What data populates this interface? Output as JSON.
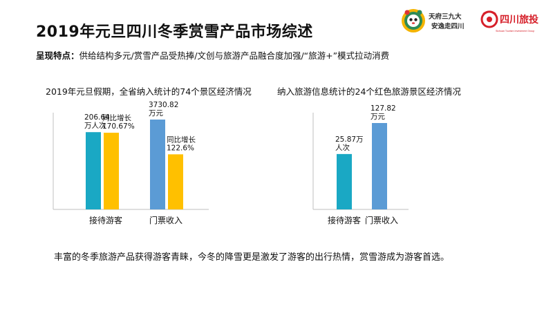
{
  "page": {
    "title": "2019年元旦四川冬季赏雪产品市场综述",
    "subtitle_label": "呈现特点：",
    "subtitle_text": "供给结构多元/赏雪产品受热捧/文创与旅游产品融合度加强/“旅游+”模式拉动消费",
    "footer": "丰富的冬季旅游产品获得游客青睐，今冬的降雪更是激发了游客的出行热情，赏雪游成为游客首选。",
    "logos": {
      "left_text_line1": "天府三九大",
      "left_text_line2": "安逸走四川",
      "right_text": "四川旅投",
      "right_subtext": "Sichuan Tourism Investment Group"
    }
  },
  "colors": {
    "teal": "#1aa8c4",
    "gold": "#ffc000",
    "blue": "#5b9bd5",
    "axis": "#bfbfbf"
  },
  "chart_data": [
    {
      "type": "bar",
      "title": "2019年元旦假期，全省纳入统计的74个景区经济情况",
      "categories": [
        "接待游客",
        "门票收入"
      ],
      "series": [
        {
          "values": [
            206.64,
            3730.82
          ],
          "labels": [
            "206.64\n万人次",
            "3730.82\n万元"
          ],
          "colors": [
            "#1aa8c4",
            "#5b9bd5"
          ]
        },
        {
          "values": [
            170.67,
            122.6
          ],
          "labels": [
            "同比增长\n170.67%",
            "同比增长\n122.6%"
          ],
          "colors": [
            "#ffc000",
            "#ffc000"
          ]
        }
      ]
    },
    {
      "type": "bar",
      "title": "纳入旅游信息统计的24个红色旅游景区经济情况",
      "categories": [
        "接待游客",
        "门票收入"
      ],
      "series": [
        {
          "values": [
            25.87,
            127.82
          ],
          "labels": [
            "25.87万\n人次",
            "127.82\n万元"
          ],
          "colors": [
            "#1aa8c4",
            "#5b9bd5"
          ]
        }
      ]
    }
  ]
}
